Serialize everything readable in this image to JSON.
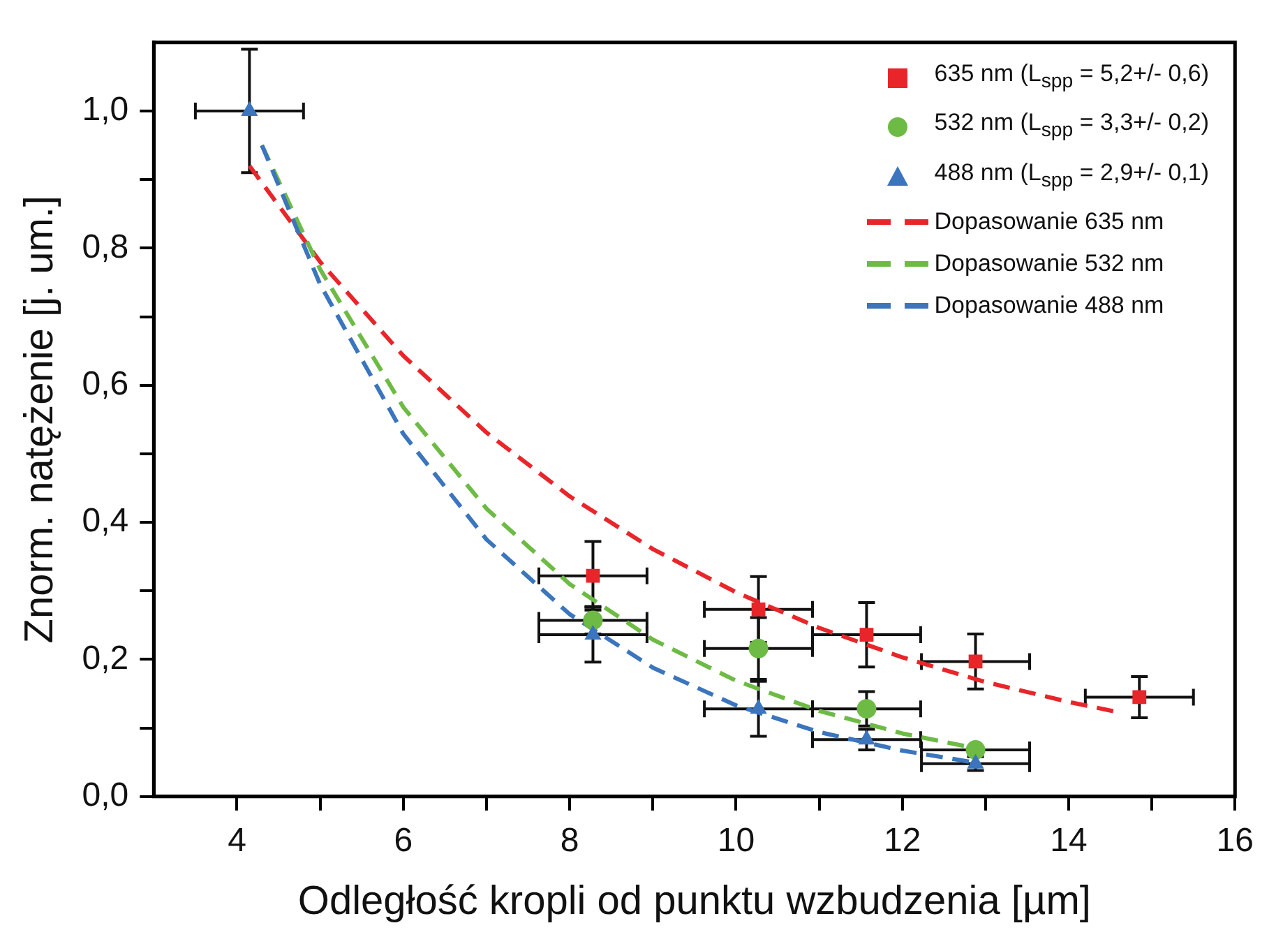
{
  "chart_data": {
    "type": "scatter",
    "xlabel": "Odległość kropli od punktu wzbudzenia [µm]",
    "ylabel": "Znorm. natężenie [j. um.]",
    "xlim": [
      3,
      16
    ],
    "xticks": [
      4,
      {
        "value": 5,
        "label": null
      },
      6,
      {
        "value": 7,
        "label": null
      },
      8,
      {
        "value": 9,
        "label": null
      },
      10,
      {
        "value": 11,
        "label": null
      },
      12,
      {
        "value": 13,
        "label": null
      },
      14,
      {
        "value": 15,
        "label": null
      },
      16
    ],
    "ylim": [
      0,
      1.1
    ],
    "yticks": [
      {
        "value": 0,
        "label": "0,0"
      },
      {
        "value": 0.1,
        "label": null
      },
      {
        "value": 0.2,
        "label": "0,2"
      },
      {
        "value": 0.3,
        "label": null
      },
      {
        "value": 0.4,
        "label": "0,4"
      },
      {
        "value": 0.5,
        "label": null
      },
      {
        "value": 0.6,
        "label": "0,6"
      },
      {
        "value": 0.7,
        "label": null
      },
      {
        "value": 0.8,
        "label": "0,8"
      },
      {
        "value": 0.9,
        "label": null
      },
      {
        "value": 1,
        "label": "1,0"
      }
    ],
    "grid": false,
    "legend": "top right",
    "series": [
      {
        "name": "635 nm (L$_{spp}$ = 5,2+/- 0,6)",
        "type": "scatter",
        "marker": "square",
        "color": "#e8262a",
        "x": [
          8.28,
          10.27,
          11.57,
          12.88,
          14.85
        ],
        "values": [
          0.322,
          0.273,
          0.236,
          0.197,
          0.145
        ],
        "errors": [
          0.05,
          0.048,
          0.047,
          0.04,
          0.03
        ],
        "xerrors": [
          0.65,
          0.65,
          0.65,
          0.65,
          0.65
        ]
      },
      {
        "name": "532 nm (L$_{spp}$ = 3,3+/- 0,2)",
        "type": "scatter",
        "marker": "circle",
        "color": "#6dbb45",
        "x": [
          8.28,
          10.27,
          11.57,
          12.88
        ],
        "values": [
          0.257,
          0.216,
          0.128,
          0.068
        ],
        "errors": [
          0.02,
          0.045,
          0.025,
          null
        ],
        "xerrors": [
          0.65,
          0.65,
          0.65,
          0.65
        ]
      },
      {
        "name": "488 nm (L$_{spp}$ = 2,9+/- 0,1)",
        "type": "scatter",
        "marker": "triangle",
        "color": "#3b75bd",
        "x": [
          4.15,
          8.28,
          10.27,
          11.57,
          12.88
        ],
        "values": [
          1.0,
          0.236,
          0.128,
          0.083,
          0.048
        ],
        "errors": [
          0.09,
          0.04,
          0.04,
          0.015,
          0.01
        ],
        "xerrors": [
          0.65,
          0.65,
          0.65,
          0.65,
          0.65
        ]
      },
      {
        "name": "Dopasowanie 635 nm",
        "type": "line",
        "line_style": "dashed",
        "marker": "none",
        "color": "#e8262a",
        "x": [
          4.15,
          5,
          6,
          7,
          8,
          9,
          10,
          11,
          12,
          13,
          14,
          14.6
        ],
        "values": [
          0.92,
          0.78,
          0.643,
          0.531,
          0.438,
          0.361,
          0.298,
          0.246,
          0.203,
          0.167,
          0.138,
          0.123
        ]
      },
      {
        "name": "Dopasowanie 532 nm",
        "type": "line",
        "line_style": "dashed",
        "marker": "none",
        "color": "#6dbb45",
        "x": [
          4.3,
          5,
          6,
          7,
          8,
          9,
          10,
          11,
          12,
          12.9
        ],
        "values": [
          0.95,
          0.769,
          0.568,
          0.42,
          0.31,
          0.229,
          0.169,
          0.125,
          0.092,
          0.07
        ]
      },
      {
        "name": "Dopasowanie 488 nm",
        "type": "line",
        "line_style": "dashed",
        "marker": "none",
        "color": "#3b75bd",
        "x": [
          4.3,
          5,
          6,
          7,
          8,
          9,
          10,
          11,
          12,
          12.9
        ],
        "values": [
          0.95,
          0.747,
          0.529,
          0.375,
          0.266,
          0.188,
          0.133,
          0.094,
          0.067,
          0.049
        ]
      }
    ]
  }
}
